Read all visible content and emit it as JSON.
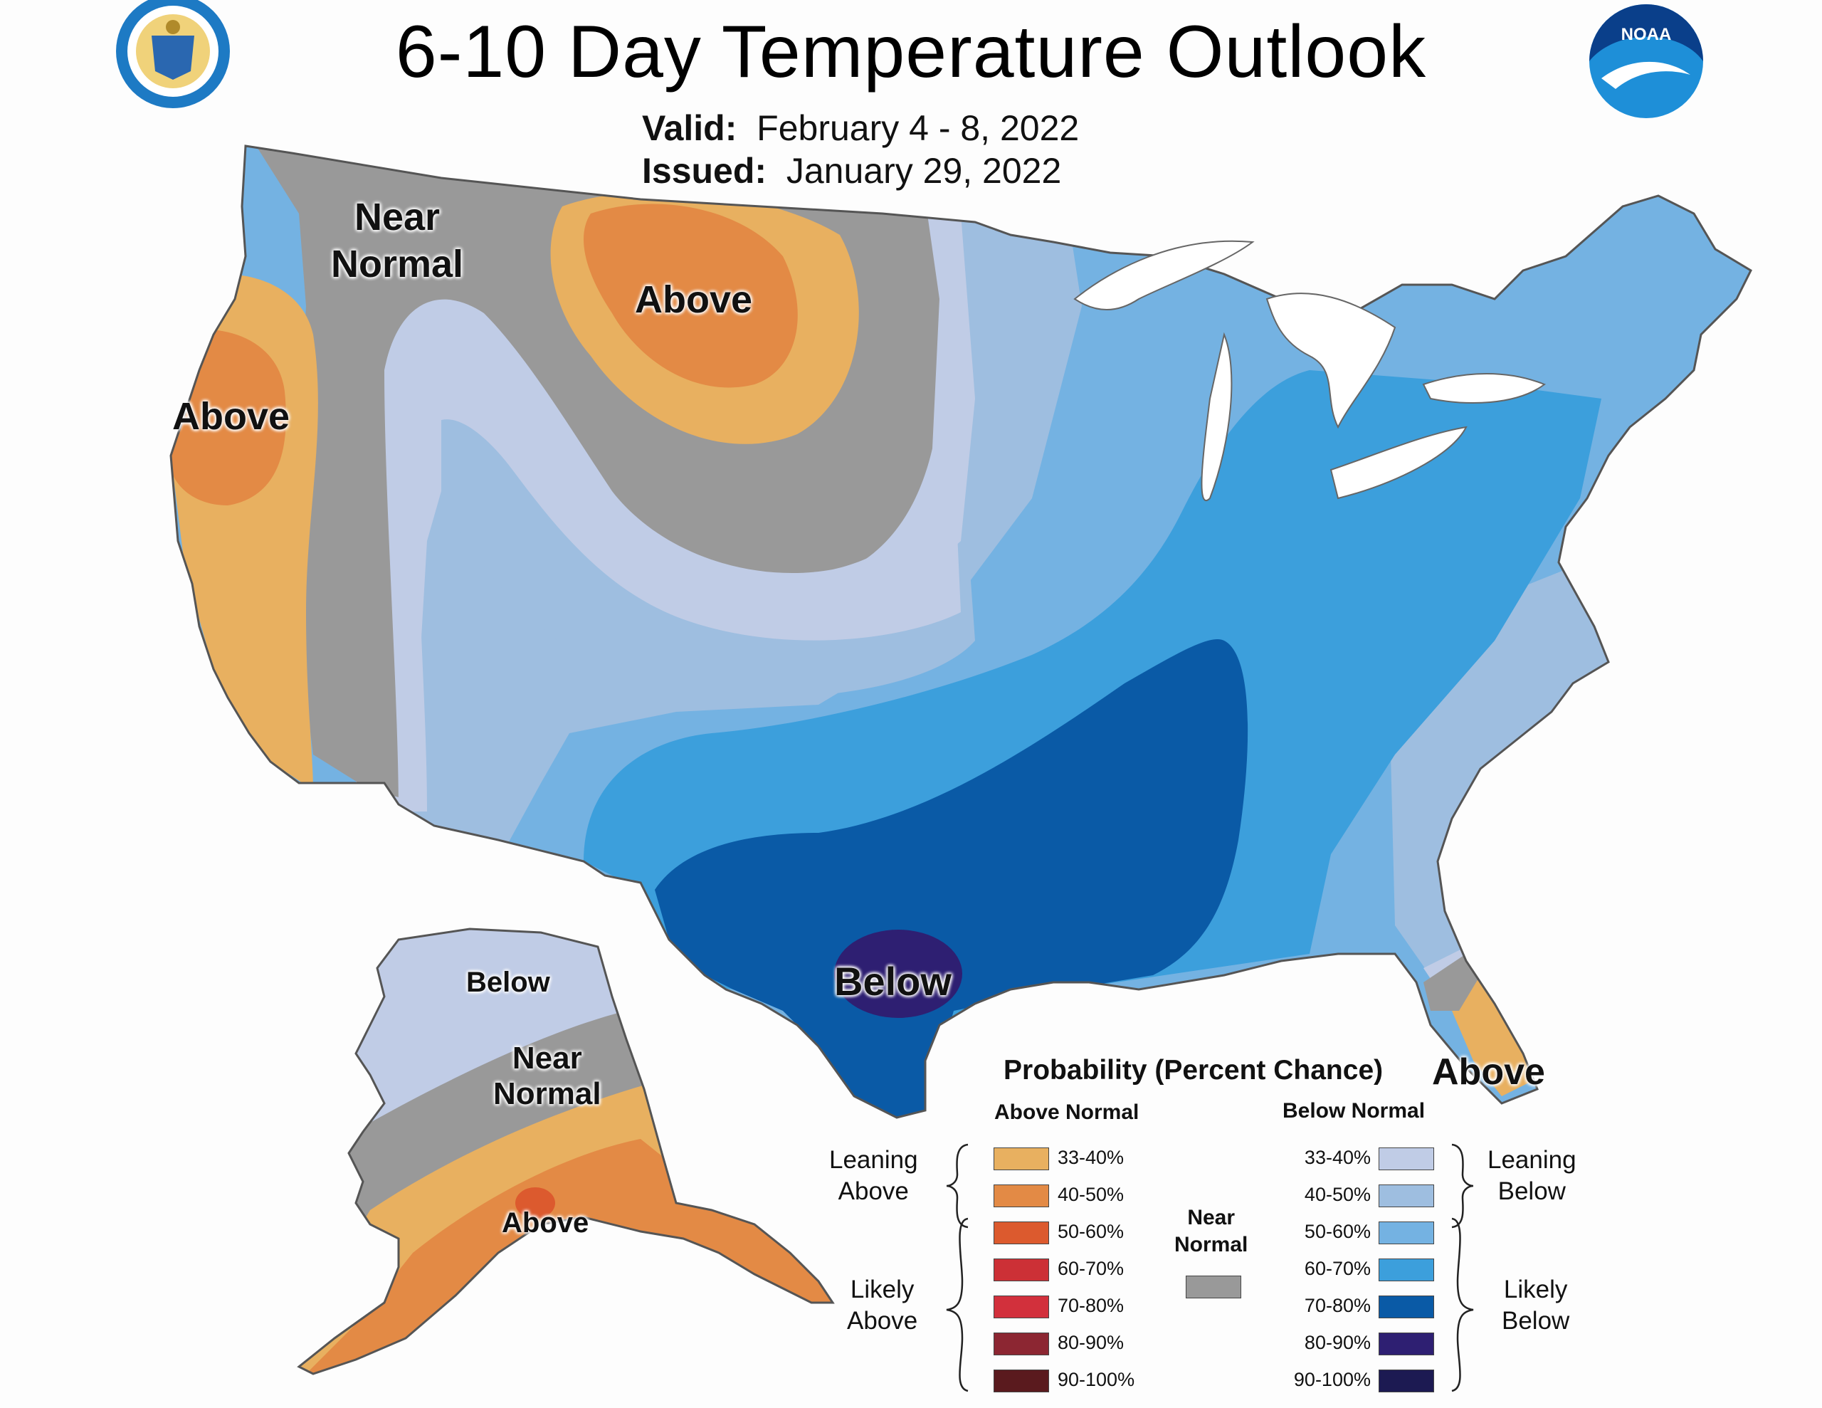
{
  "header": {
    "title": "6-10 Day Temperature Outlook",
    "valid_label": "Valid:",
    "valid_value": "February 4 - 8, 2022",
    "issued_label": "Issued:",
    "issued_value": "January 29, 2022"
  },
  "logos": {
    "commerce_seal": "commerce-seal-icon",
    "noaa_logo": "NOAA"
  },
  "map_labels": {
    "nw_near_normal_1": "Near",
    "nw_near_normal_2": "Normal",
    "west_above": "Above",
    "plains_above": "Above",
    "texas_below": "Below",
    "florida_above": "Above",
    "ak_below": "Below",
    "ak_near_1": "Near",
    "ak_near_2": "Normal",
    "ak_above": "Above"
  },
  "legend": {
    "title": "Probability (Percent Chance)",
    "above_header": "Above Normal",
    "below_header": "Below Normal",
    "near_header_1": "Near",
    "near_header_2": "Normal",
    "leaning_above_1": "Leaning",
    "leaning_above_2": "Above",
    "likely_above_1": "Likely",
    "likely_above_2": "Above",
    "leaning_below_1": "Leaning",
    "leaning_below_2": "Below",
    "likely_below_1": "Likely",
    "likely_below_2": "Below",
    "above": [
      {
        "label": "33-40%",
        "color": "#e8b060"
      },
      {
        "label": "40-50%",
        "color": "#e38a45"
      },
      {
        "label": "50-60%",
        "color": "#dc5a2e"
      },
      {
        "label": "60-70%",
        "color": "#cc3036"
      },
      {
        "label": "70-80%",
        "color": "#d2303c"
      },
      {
        "label": "80-90%",
        "color": "#8c2632"
      },
      {
        "label": "90-100%",
        "color": "#5a1a1e"
      }
    ],
    "below": [
      {
        "label": "33-40%",
        "color": "#c0cce6"
      },
      {
        "label": "40-50%",
        "color": "#9ebee0"
      },
      {
        "label": "50-60%",
        "color": "#74b2e2"
      },
      {
        "label": "60-70%",
        "color": "#3c9fdc"
      },
      {
        "label": "70-80%",
        "color": "#0a5aa6"
      },
      {
        "label": "80-90%",
        "color": "#2e1f72"
      },
      {
        "label": "90-100%",
        "color": "#1c1a52"
      }
    ],
    "near_color": "#999999"
  }
}
